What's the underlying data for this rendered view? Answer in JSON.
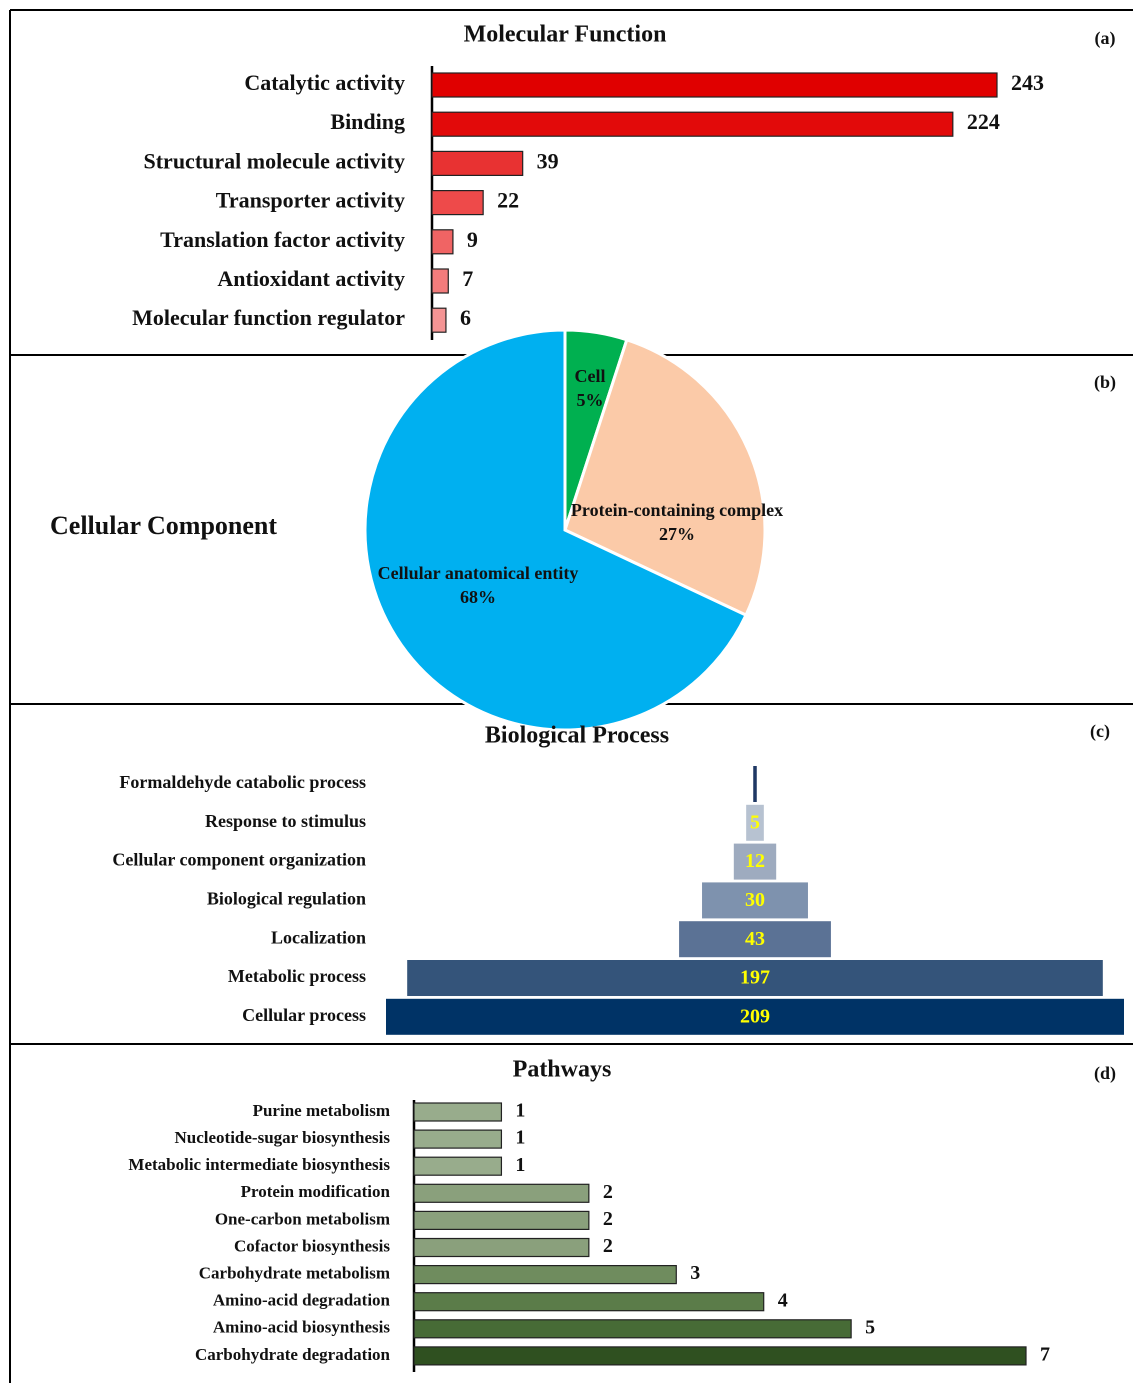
{
  "chart_data": [
    {
      "type": "bar",
      "title": "Molecular Function",
      "label": "(a)",
      "categories": [
        "Catalytic activity",
        "Binding",
        "Structural molecule activity",
        "Transporter activity",
        "Translation factor activity",
        "Antioxidant activity",
        "Molecular function regulator"
      ],
      "values": [
        243,
        224,
        39,
        22,
        9,
        7,
        6
      ],
      "colors": [
        "#e00000",
        "#e20a0a",
        "#e83232",
        "#ee4a4a",
        "#f06464",
        "#f27c7c",
        "#f49494"
      ]
    },
    {
      "type": "pie",
      "title": "Cellular Component",
      "label": "(b)",
      "categories": [
        "Cell",
        "Protein-containing complex",
        "Cellular anatomical entity"
      ],
      "values": [
        5,
        27,
        68
      ],
      "value_labels": [
        "5%",
        "27%",
        "68%"
      ],
      "colors": [
        "#00b050",
        "#fbcaa8",
        "#00b0f0"
      ]
    },
    {
      "type": "funnel",
      "title": "Biological Process",
      "label": "(c)",
      "categories": [
        "Formaldehyde catabolic process",
        "Response to stimulus",
        "Cellular component organization",
        "Biological regulation",
        "Localization",
        "Metabolic process",
        "Cellular process"
      ],
      "values": [
        1,
        5,
        12,
        30,
        43,
        197,
        209
      ],
      "value_labels": [
        null,
        "5",
        "12",
        "30",
        "43",
        "197",
        "209"
      ],
      "colors": [
        "#1f3864",
        "#b7c2d1",
        "#9eabbf",
        "#7e92ae",
        "#5b7295",
        "#34547a",
        "#003366"
      ]
    },
    {
      "type": "bar",
      "title": "Pathways",
      "label": "(d)",
      "categories": [
        "Purine metabolism",
        "Nucleotide-sugar biosynthesis",
        "Metabolic intermediate biosynthesis",
        "Protein modification",
        "One-carbon metabolism",
        "Cofactor biosynthesis",
        "Carbohydrate metabolism",
        "Amino-acid degradation",
        "Amino-acid biosynthesis",
        "Carbohydrate degradation"
      ],
      "values": [
        1,
        1,
        1,
        2,
        2,
        2,
        3,
        4,
        5,
        7
      ],
      "colors": [
        "#98ac8c",
        "#98ac8c",
        "#98ac8c",
        "#8aa07c",
        "#8aa07c",
        "#8aa07c",
        "#6f8c5e",
        "#5b7c49",
        "#476b36",
        "#2f5020"
      ]
    }
  ]
}
